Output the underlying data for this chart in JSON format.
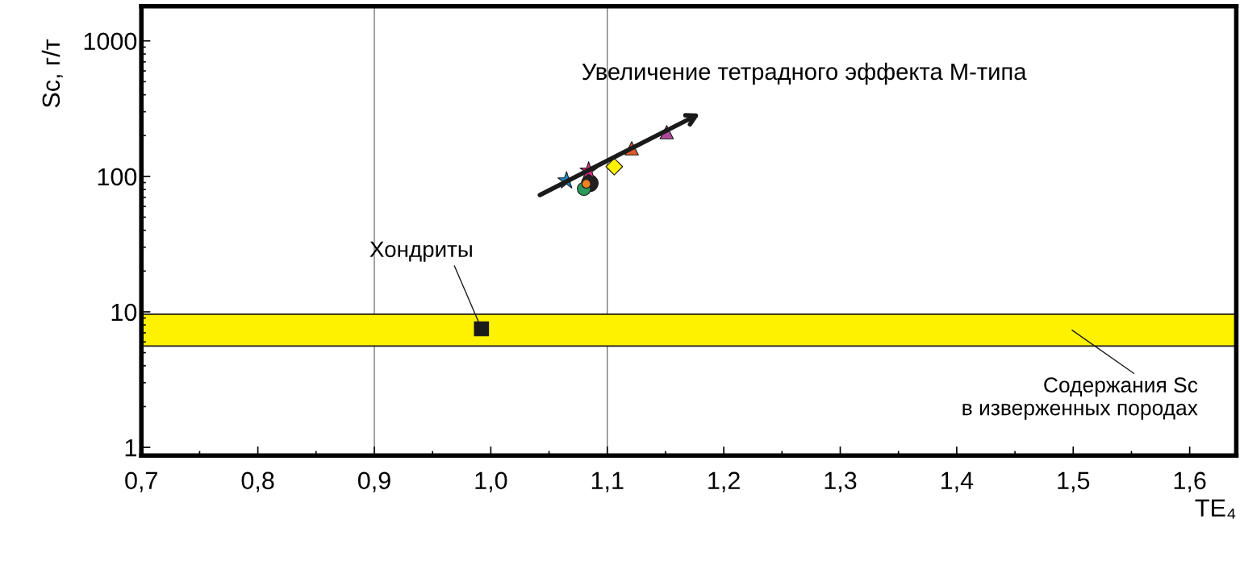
{
  "chart_data": {
    "type": "scatter",
    "xlabel": "TE₄",
    "ylabel": "Sc, г/т",
    "log": "y",
    "grid": false,
    "xlim": [
      0.7,
      1.64
    ],
    "ylim": [
      0.87,
      1800
    ],
    "xticks": [
      {
        "value": 0.7,
        "label": "0,7"
      },
      {
        "value": 0.8,
        "label": "0,8"
      },
      {
        "value": 0.9,
        "label": "0,9"
      },
      {
        "value": 1.0,
        "label": "1,0"
      },
      {
        "value": 1.1,
        "label": "1,1"
      },
      {
        "value": 1.2,
        "label": "1,2"
      },
      {
        "value": 1.3,
        "label": "1,3"
      },
      {
        "value": 1.4,
        "label": "1,4"
      },
      {
        "value": 1.5,
        "label": "1,5"
      },
      {
        "value": 1.6,
        "label": "1,6"
      }
    ],
    "yticks": [
      1,
      10,
      100,
      1000
    ],
    "series": [
      {
        "marker": "star",
        "color": "#1e8fd0",
        "x": [
          1.065
        ],
        "values": [
          93
        ]
      },
      {
        "marker": "circle",
        "color": "#231f20",
        "x": [
          1.085
        ],
        "values": [
          89
        ]
      },
      {
        "marker": "circle",
        "color": "#2a9a5a",
        "x": [
          1.08
        ],
        "values": [
          81
        ]
      },
      {
        "marker": "circle",
        "color": "#f08020",
        "x": [
          1.082
        ],
        "values": [
          88
        ]
      },
      {
        "marker": "star",
        "color": "#e0308a",
        "x": [
          1.084
        ],
        "values": [
          110
        ]
      },
      {
        "marker": "diamond",
        "color": "#fff200",
        "x": [
          1.106
        ],
        "values": [
          118
        ]
      },
      {
        "marker": "triangle",
        "color": "#e05a2a",
        "x": [
          1.121
        ],
        "values": [
          161
        ]
      },
      {
        "marker": "triangle",
        "color": "#b04a9a",
        "x": [
          1.151
        ],
        "values": [
          212
        ]
      },
      {
        "marker": "square",
        "color": "#1a1a1a",
        "x": [
          0.992
        ],
        "values": [
          7.5
        ]
      }
    ],
    "ref_lines": [
      {
        "axis": "x",
        "value": 0.9,
        "color": "#555555"
      },
      {
        "axis": "x",
        "value": 1.1,
        "color": "#555555"
      }
    ],
    "bands": [
      {
        "axis": "y",
        "from": 5.6,
        "to": 9.6,
        "color": "#fff200",
        "label": "Содержания Sc\nв изверженных породах"
      }
    ],
    "annotations": [
      "Увеличение тетрадного эффекта М-типа",
      {
        "text": "Хондриты",
        "x": 0.992,
        "y": 7.5
      }
    ]
  }
}
